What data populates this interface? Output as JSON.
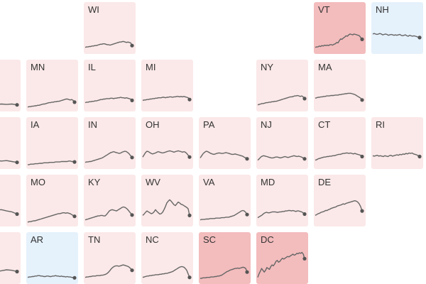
{
  "colors": {
    "light_red": "#fbe8e8",
    "medium_red": "#f3bcbd",
    "light_blue": "#e5f1fb",
    "line": "#666666",
    "dot": "#555555"
  },
  "chart_data": {
    "type": "line",
    "layout": "tile grid map of states, one small line chart per tile",
    "grid": false,
    "states": [
      {
        "label": "WI",
        "col": 1,
        "row": 0,
        "fill": "light_red",
        "values": [
          10,
          11,
          11,
          12,
          12,
          13,
          13,
          14,
          14,
          15,
          16,
          17,
          17,
          18,
          18,
          17,
          16,
          16,
          15,
          16,
          17,
          18,
          19,
          20,
          21,
          22,
          22,
          23,
          23,
          22,
          21,
          22,
          21,
          20,
          14
        ]
      },
      {
        "label": "VT",
        "col": 5,
        "row": 0,
        "fill": "medium_red",
        "values": [
          10,
          11,
          11,
          13,
          12,
          14,
          13,
          15,
          14,
          15,
          14,
          16,
          16,
          15,
          17,
          18,
          21,
          20,
          25,
          29,
          28,
          31,
          33,
          36,
          35,
          38,
          40,
          39,
          38,
          40,
          39,
          38,
          37,
          36,
          32,
          28
        ]
      },
      {
        "label": "NH",
        "col": 6,
        "row": 0,
        "fill": "light_blue",
        "values": [
          40,
          41,
          40,
          39,
          40,
          41,
          40,
          38,
          39,
          40,
          39,
          37,
          38,
          39,
          38,
          37,
          38,
          37,
          38,
          39,
          37,
          36,
          37,
          38,
          36,
          35,
          37,
          36,
          35,
          36,
          35,
          34,
          33,
          32
        ]
      },
      {
        "label": "",
        "col": -1,
        "row": 1,
        "fill": "light_red",
        "values": [
          10,
          11,
          10,
          11,
          12,
          11,
          12,
          11,
          12,
          10
        ]
      },
      {
        "label": "MN",
        "col": 0,
        "row": 1,
        "fill": "light_red",
        "values": [
          5,
          6,
          6,
          7,
          7,
          8,
          8,
          9,
          9,
          10,
          11,
          12,
          12,
          13,
          14,
          15,
          15,
          16,
          16,
          17,
          17,
          18,
          18,
          19,
          20,
          21,
          22,
          23,
          23,
          22,
          21,
          22,
          20,
          16
        ]
      },
      {
        "label": "IL",
        "col": 1,
        "row": 1,
        "fill": "light_red",
        "values": [
          15,
          16,
          16,
          17,
          17,
          18,
          18,
          19,
          19,
          20,
          21,
          22,
          22,
          23,
          23,
          24,
          24,
          24,
          25,
          25,
          24,
          25,
          25,
          26,
          26,
          27,
          26,
          26,
          25,
          26,
          25,
          24,
          23,
          20
        ]
      },
      {
        "label": "MI",
        "col": 2,
        "row": 1,
        "fill": "light_red",
        "values": [
          20,
          21,
          21,
          22,
          22,
          23,
          23,
          24,
          24,
          25,
          25,
          26,
          26,
          26,
          27,
          27,
          26,
          27,
          27,
          28,
          28,
          27,
          28,
          28,
          29,
          29,
          28,
          29,
          28,
          29,
          28,
          27,
          26,
          22
        ]
      },
      {
        "label": "NY",
        "col": 4,
        "row": 1,
        "fill": "light_red",
        "values": [
          10,
          11,
          12,
          13,
          13,
          14,
          15,
          15,
          16,
          16,
          17,
          17,
          18,
          18,
          19,
          20,
          21,
          22,
          23,
          24,
          25,
          26,
          27,
          28,
          28,
          29,
          30,
          30,
          31,
          30,
          29,
          30,
          28,
          24
        ]
      },
      {
        "label": "MA",
        "col": 5,
        "row": 1,
        "fill": "light_red",
        "values": [
          25,
          26,
          27,
          27,
          28,
          28,
          29,
          29,
          30,
          30,
          30,
          31,
          31,
          31,
          32,
          32,
          32,
          33,
          33,
          34,
          34,
          35,
          35,
          36,
          36,
          36,
          35,
          34,
          33,
          31,
          29,
          27,
          25,
          21
        ]
      },
      {
        "label": "",
        "col": -1,
        "row": 2,
        "fill": "light_red",
        "values": [
          12,
          13,
          12,
          14,
          13,
          14,
          13,
          14,
          12,
          10
        ]
      },
      {
        "label": "IA",
        "col": 0,
        "row": 2,
        "fill": "light_red",
        "values": [
          5,
          5,
          6,
          6,
          6,
          7,
          7,
          7,
          8,
          8,
          8,
          9,
          9,
          9,
          9,
          10,
          10,
          10,
          10,
          11,
          11,
          11,
          11,
          12,
          12,
          12,
          12,
          12,
          13,
          13,
          12,
          12,
          11
        ]
      },
      {
        "label": "IN",
        "col": 1,
        "row": 2,
        "fill": "light_red",
        "values": [
          10,
          11,
          11,
          12,
          12,
          13,
          14,
          15,
          16,
          17,
          18,
          19,
          20,
          22,
          24,
          26,
          28,
          30,
          32,
          33,
          34,
          33,
          32,
          31,
          30,
          31,
          33,
          34,
          35,
          34,
          32,
          29,
          25,
          21
        ]
      },
      {
        "label": "OH",
        "col": 2,
        "row": 2,
        "fill": "light_red",
        "values": [
          22,
          27,
          32,
          35,
          34,
          32,
          30,
          29,
          30,
          31,
          33,
          34,
          33,
          32,
          31,
          32,
          33,
          34,
          35,
          36,
          35,
          34,
          33,
          34,
          35,
          36,
          35,
          34,
          33,
          34,
          33,
          30,
          26,
          22
        ]
      },
      {
        "label": "PA",
        "col": 3,
        "row": 2,
        "fill": "light_red",
        "values": [
          20,
          25,
          30,
          33,
          35,
          34,
          32,
          30,
          29,
          28,
          29,
          30,
          31,
          31,
          30,
          30,
          31,
          32,
          31,
          30,
          29,
          28,
          28,
          29,
          28,
          27,
          26,
          25,
          24,
          22,
          20,
          18
        ]
      },
      {
        "label": "NJ",
        "col": 4,
        "row": 2,
        "fill": "light_red",
        "values": [
          15,
          18,
          22,
          24,
          25,
          24,
          23,
          22,
          21,
          20,
          20,
          21,
          22,
          22,
          21,
          20,
          21,
          22,
          23,
          22,
          21,
          22,
          23,
          24,
          25,
          24,
          23,
          24,
          23,
          22,
          20,
          18
        ]
      },
      {
        "label": "CT",
        "col": 5,
        "row": 2,
        "fill": "light_red",
        "values": [
          15,
          16,
          18,
          19,
          20,
          21,
          22,
          22,
          23,
          23,
          24,
          24,
          25,
          25,
          26,
          27,
          28,
          28,
          29,
          30,
          30,
          31,
          31,
          30,
          31,
          30,
          29,
          30,
          29,
          28,
          27,
          26,
          23
        ]
      },
      {
        "label": "RI",
        "col": 6,
        "row": 2,
        "fill": "light_red",
        "values": [
          25,
          24,
          25,
          26,
          24,
          25,
          24,
          23,
          25,
          24,
          23,
          25,
          26,
          24,
          25,
          26,
          27,
          26,
          28,
          27,
          29,
          28,
          30,
          29,
          31,
          30,
          31,
          29,
          28,
          27,
          25,
          23
        ]
      },
      {
        "label": "",
        "col": -1,
        "row": 3,
        "fill": "light_red",
        "values": [
          25,
          27,
          28,
          30,
          31,
          32,
          33,
          30,
          28,
          23
        ]
      },
      {
        "label": "MO",
        "col": 0,
        "row": 3,
        "fill": "light_red",
        "values": [
          5,
          6,
          6,
          7,
          8,
          8,
          9,
          10,
          11,
          12,
          13,
          14,
          15,
          16,
          17,
          18,
          19,
          20,
          21,
          22,
          23,
          24,
          24,
          25,
          26,
          26,
          25,
          26,
          25,
          24,
          22,
          20,
          18
        ]
      },
      {
        "label": "KY",
        "col": 1,
        "row": 3,
        "fill": "light_red",
        "values": [
          10,
          11,
          12,
          13,
          14,
          15,
          16,
          17,
          18,
          19,
          19,
          20,
          20,
          19,
          19,
          22,
          26,
          30,
          32,
          33,
          32,
          31,
          30,
          32,
          34,
          36,
          38,
          39,
          38,
          36,
          33,
          29,
          25,
          21
        ]
      },
      {
        "label": "WV",
        "col": 2,
        "row": 3,
        "fill": "light_red",
        "values": [
          20,
          23,
          27,
          30,
          28,
          26,
          24,
          25,
          28,
          33,
          29,
          26,
          23,
          24,
          27,
          33,
          40,
          48,
          52,
          55,
          52,
          48,
          44,
          42,
          46,
          50,
          48,
          45,
          44,
          42,
          40,
          38,
          35,
          20
        ]
      },
      {
        "label": "VA",
        "col": 3,
        "row": 3,
        "fill": "light_red",
        "values": [
          10,
          11,
          11,
          11,
          12,
          12,
          12,
          13,
          13,
          13,
          13,
          14,
          14,
          14,
          14,
          15,
          15,
          15,
          16,
          16,
          16,
          17,
          18,
          19,
          20,
          22,
          24,
          26,
          28,
          30,
          31,
          30,
          27,
          22
        ]
      },
      {
        "label": "MD",
        "col": 4,
        "row": 3,
        "fill": "light_red",
        "values": [
          15,
          17,
          19,
          21,
          24,
          26,
          27,
          26,
          26,
          27,
          28,
          28,
          28,
          27,
          27,
          28,
          28,
          29,
          29,
          30,
          30,
          31,
          31,
          30,
          31,
          30,
          29,
          30,
          30,
          29,
          28,
          26,
          23
        ]
      },
      {
        "label": "DE",
        "col": 5,
        "row": 3,
        "fill": "light_red",
        "values": [
          20,
          22,
          24,
          25,
          27,
          28,
          29,
          31,
          31,
          33,
          34,
          36,
          37,
          38,
          39,
          41,
          42,
          43,
          44,
          46,
          45,
          47,
          48,
          49,
          50,
          51,
          52,
          53,
          52,
          50,
          46,
          40,
          30
        ]
      },
      {
        "label": "",
        "col": -1,
        "row": 4,
        "fill": "light_red",
        "values": [
          10,
          12,
          14,
          16,
          19,
          22,
          25,
          27,
          26,
          23
        ]
      },
      {
        "label": "AR",
        "col": 0,
        "row": 4,
        "fill": "light_blue",
        "values": [
          10,
          11,
          11,
          12,
          12,
          13,
          13,
          14,
          14,
          13,
          13,
          12,
          12,
          13,
          13,
          12,
          12,
          13,
          13,
          14,
          13,
          13,
          12,
          13,
          12,
          12,
          11,
          12,
          11,
          11,
          10,
          10,
          9
        ]
      },
      {
        "label": "TN",
        "col": 1,
        "row": 4,
        "fill": "light_red",
        "values": [
          10,
          11,
          11,
          12,
          12,
          13,
          13,
          13,
          14,
          14,
          14,
          15,
          15,
          16,
          17,
          19,
          22,
          26,
          30,
          33,
          35,
          36,
          36,
          35,
          36,
          37,
          38,
          37,
          36,
          35,
          33,
          30,
          26
        ]
      },
      {
        "label": "NC",
        "col": 2,
        "row": 4,
        "fill": "light_red",
        "values": [
          10,
          11,
          12,
          13,
          13,
          14,
          14,
          15,
          15,
          16,
          16,
          16,
          17,
          17,
          18,
          18,
          19,
          19,
          20,
          21,
          22,
          23,
          25,
          27,
          29,
          31,
          33,
          34,
          34,
          33,
          30,
          26,
          18,
          10
        ]
      },
      {
        "label": "SC",
        "col": 3,
        "row": 4,
        "fill": "medium_red",
        "values": [
          8,
          8,
          9,
          9,
          9,
          10,
          10,
          10,
          11,
          11,
          11,
          12,
          12,
          13,
          13,
          14,
          15,
          17,
          19,
          21,
          23,
          24,
          26,
          27,
          28,
          29,
          30,
          30,
          31,
          30,
          31,
          32,
          33,
          32,
          30,
          22
        ]
      },
      {
        "label": "DC",
        "col": 4,
        "row": 4,
        "fill": "medium_red",
        "values": [
          10,
          18,
          24,
          30,
          26,
          22,
          26,
          32,
          30,
          28,
          34,
          38,
          36,
          40,
          46,
          48,
          44,
          46,
          50,
          53,
          51,
          53,
          55,
          57,
          56,
          58,
          60,
          62,
          60,
          61,
          64,
          63,
          65,
          64,
          66,
          62,
          52
        ]
      }
    ]
  }
}
